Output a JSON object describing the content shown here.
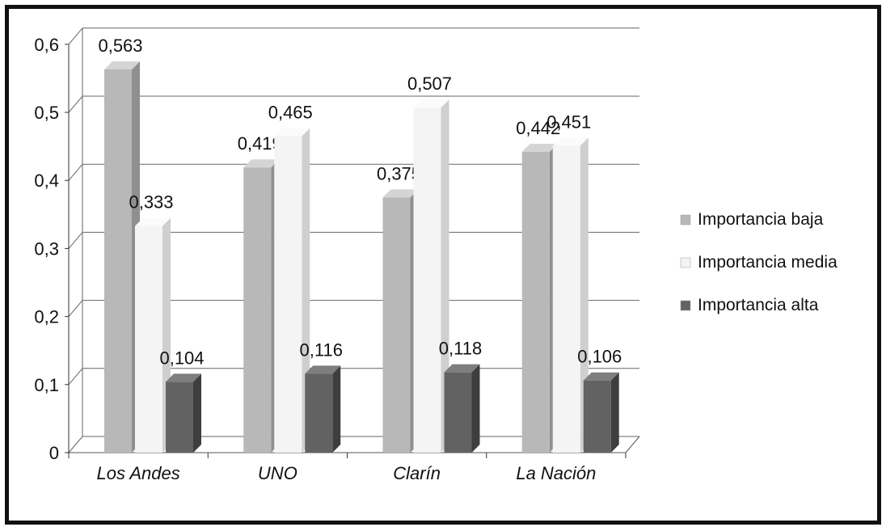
{
  "chart_data": {
    "type": "bar",
    "categories": [
      "Los Andes",
      "UNO",
      "Clarín",
      "La Nación"
    ],
    "series": [
      {
        "name": "Importancia baja",
        "values": [
          0.563,
          0.419,
          0.375,
          0.442
        ],
        "labels": [
          "0,563",
          "0,419",
          "0,375",
          "0,442"
        ]
      },
      {
        "name": "Importancia media",
        "values": [
          0.333,
          0.465,
          0.507,
          0.451
        ],
        "labels": [
          "0,333",
          "0,465",
          "0,507",
          "0,451"
        ]
      },
      {
        "name": "Importancia alta",
        "values": [
          0.104,
          0.116,
          0.118,
          0.106
        ],
        "labels": [
          "0,104",
          "0,116",
          "0,118",
          "0,106"
        ]
      }
    ],
    "yticks": [
      0,
      0.1,
      0.2,
      0.3,
      0.4,
      0.5,
      0.6
    ],
    "ytick_labels": [
      "0",
      "0,1",
      "0,2",
      "0,3",
      "0,4",
      "0,5",
      "0,6"
    ],
    "ylim": [
      0,
      0.6
    ],
    "grid": true,
    "style": "3d-clustered-column",
    "legend_position": "right",
    "colors": {
      "Importancia baja": {
        "front": "#b8b8b8",
        "side": "#8f8f8f",
        "top": "#d4d4d4"
      },
      "Importancia media": {
        "front": "#f4f4f4",
        "side": "#cfcfcf",
        "top": "#fbfbfb"
      },
      "Importancia alta": {
        "front": "#626262",
        "side": "#3e3e3e",
        "top": "#7e7e7e"
      }
    }
  }
}
